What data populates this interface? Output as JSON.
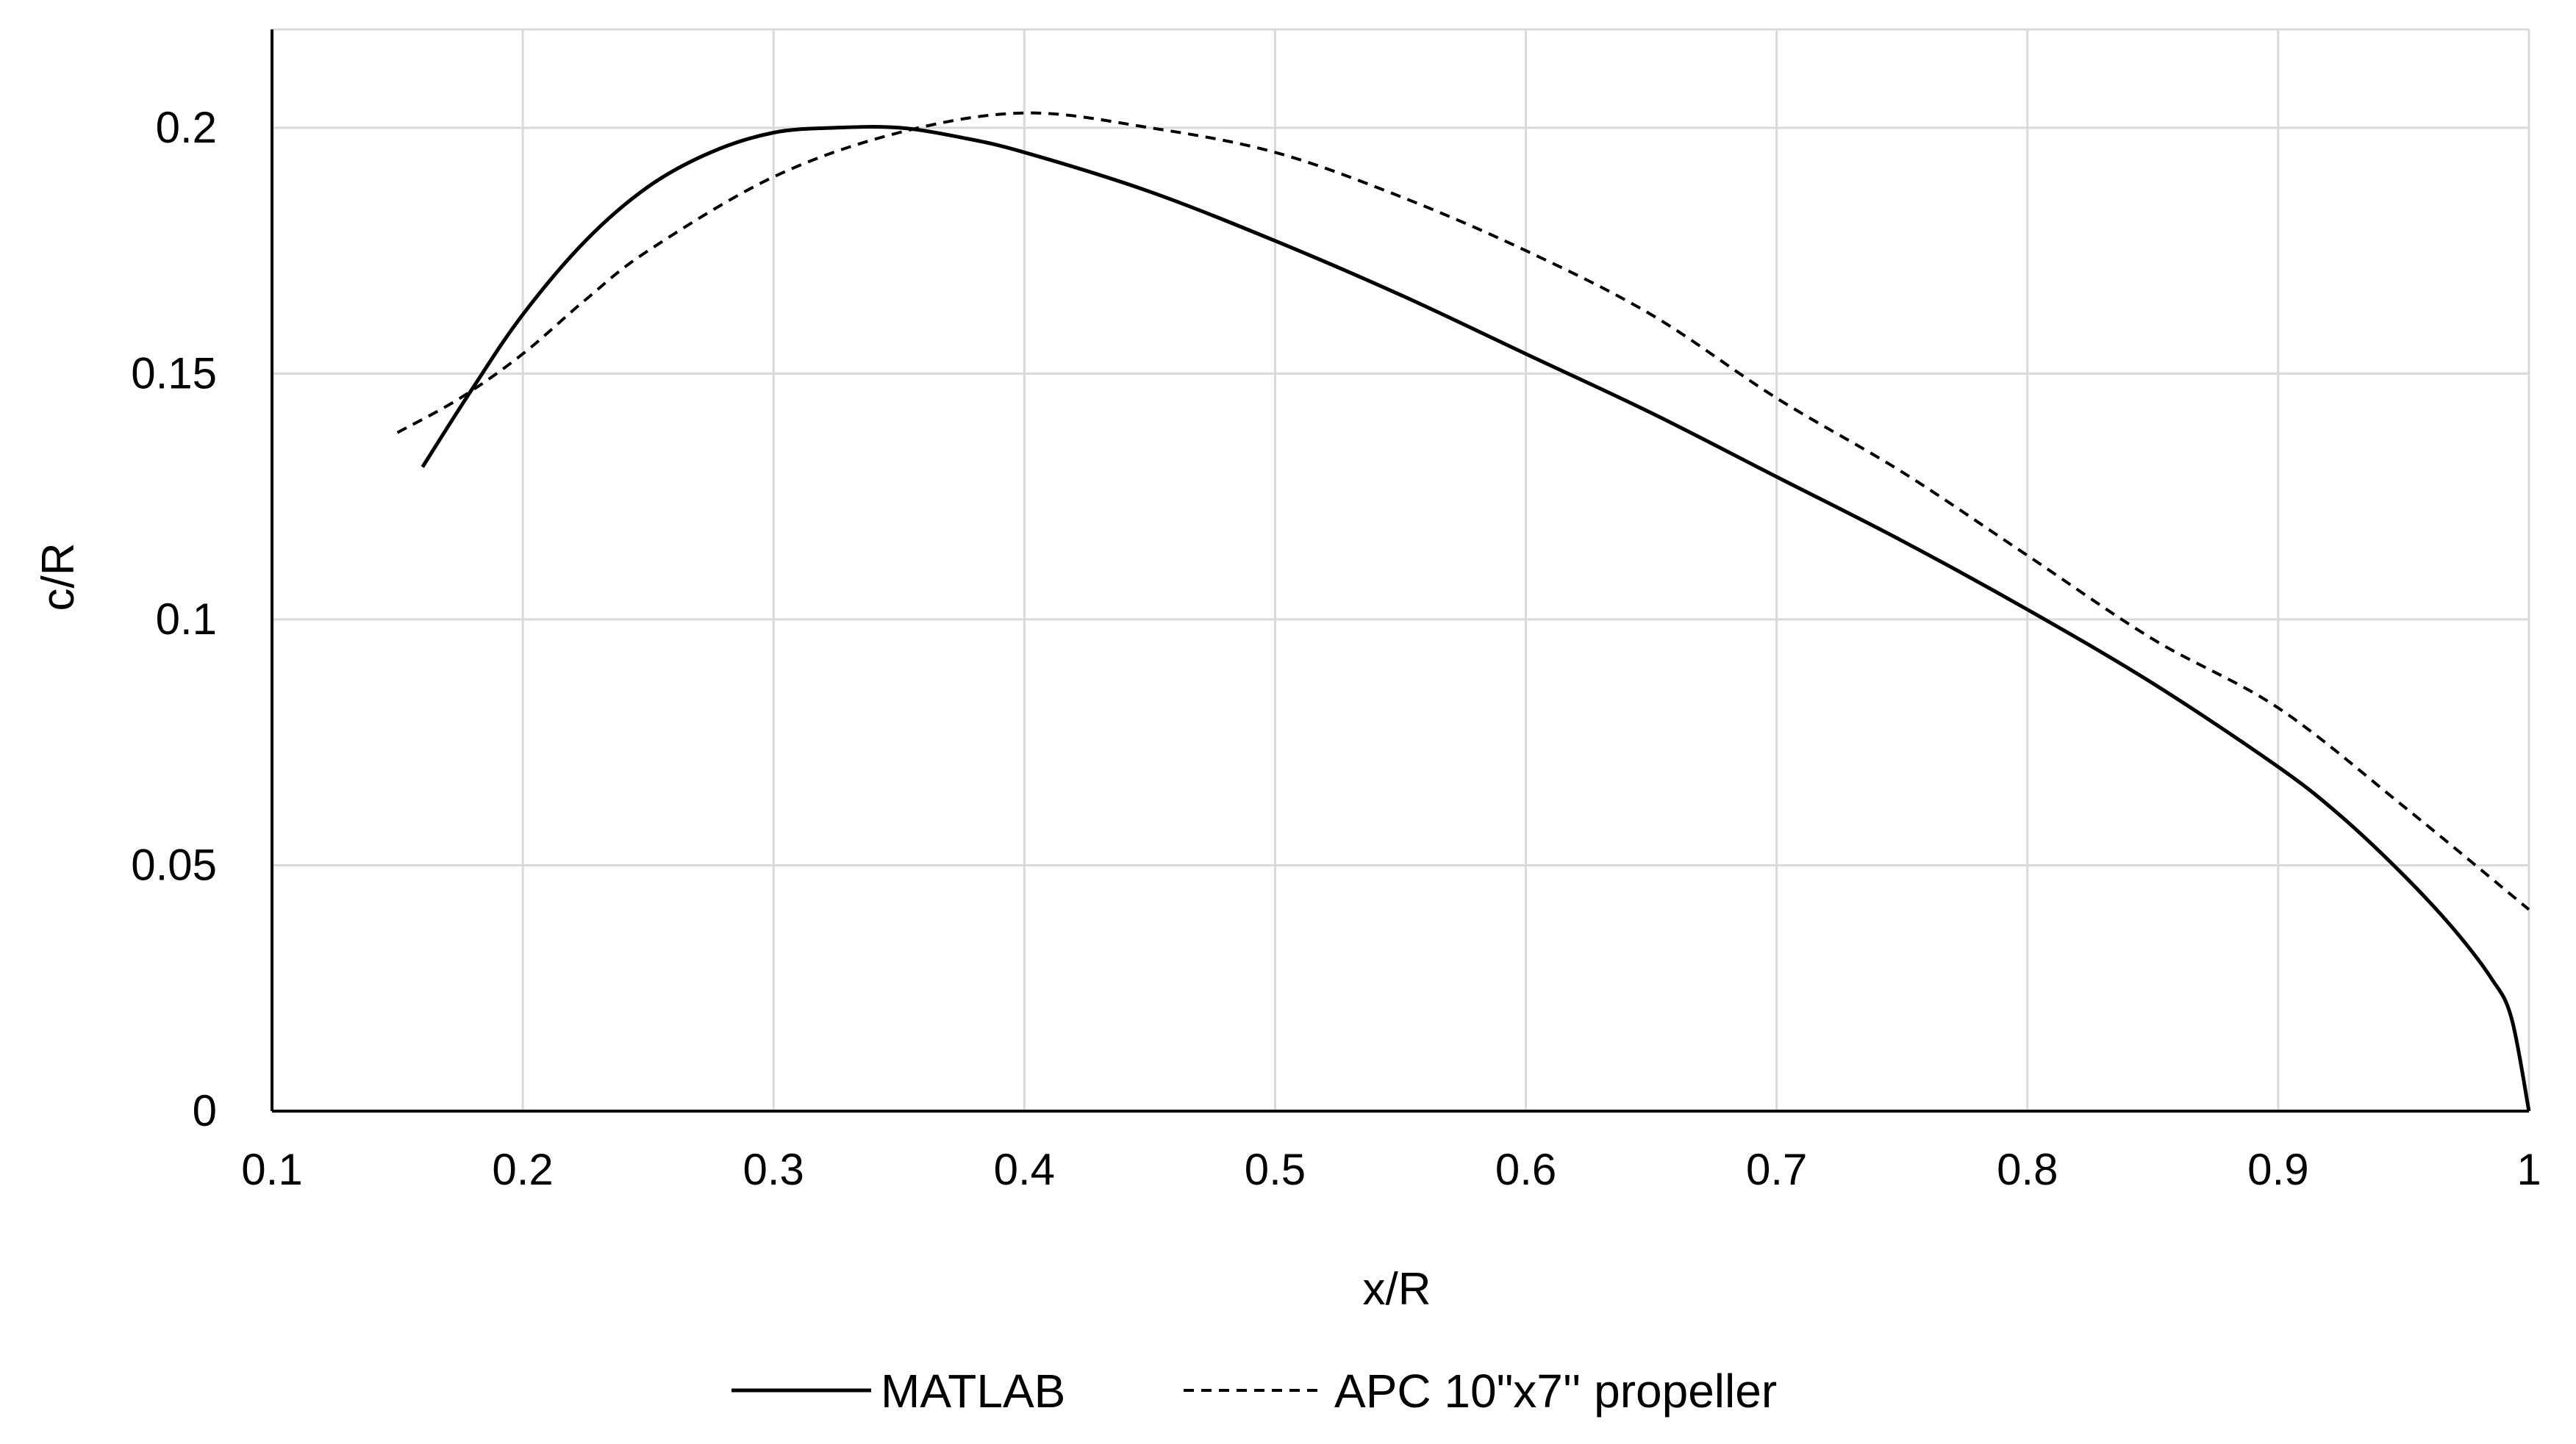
{
  "chart_data": {
    "type": "line",
    "title": "",
    "xlabel": "x/R",
    "ylabel": "c/R",
    "xlim": [
      0.1,
      1
    ],
    "ylim": [
      0,
      0.22
    ],
    "x_ticks": [
      0.1,
      0.2,
      0.3,
      0.4,
      0.5,
      0.6,
      0.7,
      0.8,
      0.9,
      1
    ],
    "x_tick_labels": [
      "0.1",
      "0.2",
      "0.3",
      "0.4",
      "0.5",
      "0.6",
      "0.7",
      "0.8",
      "0.9",
      "1"
    ],
    "y_ticks": [
      0,
      0.05,
      0.1,
      0.15,
      0.2
    ],
    "y_tick_labels": [
      "0",
      "0.05",
      "0.1",
      "0.15",
      "0.2"
    ],
    "grid": true,
    "legend_position": "bottom-center",
    "series": [
      {
        "name": "MATLAB",
        "style": "solid",
        "color": "#000000",
        "x": [
          0.16,
          0.18,
          0.2,
          0.225,
          0.25,
          0.275,
          0.3,
          0.325,
          0.35,
          0.375,
          0.4,
          0.45,
          0.5,
          0.55,
          0.6,
          0.65,
          0.7,
          0.75,
          0.8,
          0.85,
          0.9,
          0.925,
          0.95,
          0.97,
          0.985,
          0.993,
          1.0
        ],
        "y": [
          0.131,
          0.147,
          0.162,
          0.177,
          0.188,
          0.195,
          0.199,
          0.2,
          0.2,
          0.198,
          0.195,
          0.187,
          0.177,
          0.166,
          0.154,
          0.142,
          0.129,
          0.116,
          0.102,
          0.087,
          0.07,
          0.06,
          0.048,
          0.037,
          0.027,
          0.019,
          0.0
        ]
      },
      {
        "name": "APC 10\"x7'' propeller",
        "style": "dashed",
        "color": "#000000",
        "x": [
          0.15,
          0.175,
          0.2,
          0.225,
          0.25,
          0.3,
          0.35,
          0.4,
          0.45,
          0.5,
          0.55,
          0.6,
          0.65,
          0.7,
          0.75,
          0.8,
          0.85,
          0.9,
          0.95,
          1.0
        ],
        "y": [
          0.138,
          0.145,
          0.154,
          0.165,
          0.175,
          0.19,
          0.199,
          0.203,
          0.2,
          0.195,
          0.186,
          0.175,
          0.162,
          0.145,
          0.13,
          0.113,
          0.096,
          0.082,
          0.062,
          0.041
        ]
      }
    ]
  }
}
